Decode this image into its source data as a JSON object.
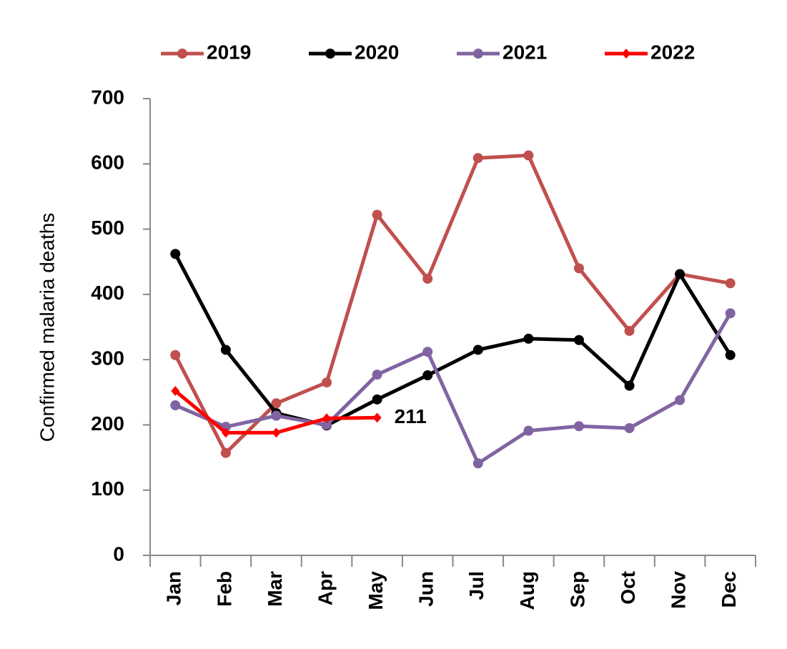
{
  "chart_data": {
    "type": "line",
    "y_label": "Confirmed malaria deaths",
    "categories": [
      "Jan",
      "Feb",
      "Mar",
      "Apr",
      "May",
      "Jun",
      "Jul",
      "Aug",
      "Sep",
      "Oct",
      "Nov",
      "Dec"
    ],
    "series": [
      {
        "name": "2019",
        "color": "#c0504d",
        "marker": "circle",
        "values": [
          307,
          157,
          233,
          265,
          522,
          424,
          609,
          613,
          440,
          344,
          431,
          417
        ]
      },
      {
        "name": "2020",
        "color": "#000000",
        "marker": "circle",
        "values": [
          462,
          315,
          218,
          199,
          239,
          276,
          315,
          332,
          330,
          260,
          431,
          307
        ]
      },
      {
        "name": "2021",
        "color": "#8064a2",
        "marker": "circle",
        "values": [
          230,
          197,
          214,
          200,
          277,
          312,
          141,
          191,
          198,
          195,
          238,
          371
        ]
      },
      {
        "name": "2022",
        "color": "#ff0000",
        "marker": "diamond",
        "values": [
          252,
          188,
          188,
          210,
          211,
          null,
          null,
          null,
          null,
          null,
          null,
          null
        ]
      }
    ],
    "labeled_points": [
      {
        "series": 3,
        "index": 4
      }
    ],
    "ylim": [
      0,
      700
    ],
    "yticks": [
      0,
      100,
      200,
      300,
      400,
      500,
      600,
      700
    ],
    "legend": "top",
    "grid": false
  }
}
